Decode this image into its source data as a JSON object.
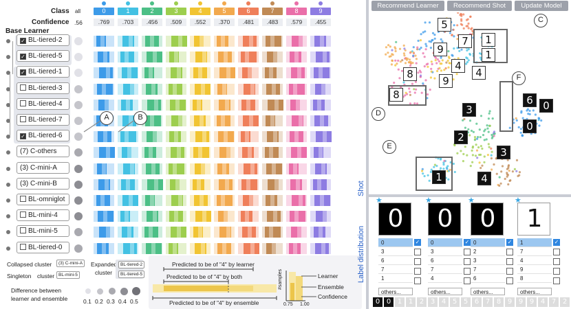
{
  "header": {
    "class_label": "Class",
    "all_label": "all",
    "confidence_label": "Confidence",
    "all_confidence": ".56",
    "base_learner_label": "Base Learner",
    "classes": [
      {
        "id": "0",
        "color": "#3d9be9",
        "confidence": ".769"
      },
      {
        "id": "1",
        "color": "#43c1e3",
        "confidence": ".703"
      },
      {
        "id": "2",
        "color": "#4cbf86",
        "confidence": ".456"
      },
      {
        "id": "3",
        "color": "#9dce4e",
        "confidence": ".509"
      },
      {
        "id": "4",
        "color": "#f1c432",
        "confidence": ".552"
      },
      {
        "id": "5",
        "color": "#f2a94e",
        "confidence": ".370"
      },
      {
        "id": "6",
        "color": "#ef7f5a",
        "confidence": ".481"
      },
      {
        "id": "7",
        "color": "#c08a55",
        "confidence": ".483"
      },
      {
        "id": "8",
        "color": "#ea6fa9",
        "confidence": ".579"
      },
      {
        "id": "9",
        "color": "#8d7ce2",
        "confidence": ".455"
      }
    ]
  },
  "learners": [
    {
      "label": "BL-tiered-2",
      "checked": true,
      "diff": 0.1
    },
    {
      "label": "BL-tiered-5",
      "checked": true,
      "diff": 0.1
    },
    {
      "label": "BL-tiered-1",
      "checked": true,
      "diff": 0.1
    },
    {
      "label": "BL-tiered-3",
      "checked": false,
      "diff": 0.2
    },
    {
      "label": "BL-tiered-4",
      "checked": false,
      "diff": 0.2
    },
    {
      "label": "BL-tiered-7",
      "checked": false,
      "diff": 0.2
    },
    {
      "label": "BL-tiered-6",
      "checked": true,
      "diff": 0.2
    },
    {
      "label": "(7) C-others",
      "checked": null,
      "diff": 0.3
    },
    {
      "label": "(3) C-mini-A",
      "checked": null,
      "diff": 0.4
    },
    {
      "label": "(3) C-mini-B",
      "checked": null,
      "diff": 0.4
    },
    {
      "label": "BL-omniglot",
      "checked": false,
      "diff": 0.4
    },
    {
      "label": "BL-mini-4",
      "checked": false,
      "diff": 0.4
    },
    {
      "label": "BL-mini-5",
      "checked": false,
      "diff": 0.3
    },
    {
      "label": "BL-tiered-0",
      "checked": false,
      "diff": 0.3
    }
  ],
  "callouts": {
    "a": "A",
    "b": "B",
    "c": "C",
    "d": "D",
    "e": "E",
    "f": "F"
  },
  "legend": {
    "collapsed_label": "Collapsed cluster",
    "collapsed_chip": "(3) C-mini-A",
    "singleton_label": "Singleton",
    "cluster_word": "cluster",
    "singleton_chip": "BL-mini-5",
    "expanded_label": "Expanded",
    "expanded_cluster_word": "cluster",
    "expanded_chip_1": "BL-tiered-2",
    "expanded_chip_2": "BL-tiered-5",
    "difference_label_1": "Difference between",
    "difference_label_2": "learner and ensemble",
    "difference_values": [
      "0.1",
      "0.2",
      "0.3",
      "0.4",
      "0.5"
    ],
    "pred_learner": "Predicted to be of \"4\" by learner",
    "pred_both": "Predicted to be of \"4\" by both",
    "pred_ensemble": "Predicted to be of \"4\" by ensemble",
    "samples_axis": "#samples",
    "learner_key": "Learner",
    "ensemble_key": "Ensemble",
    "confidence_key": "Confidence",
    "tick_low": "0.75",
    "tick_high": "1.00"
  },
  "toolbar": {
    "recommend_learner": "Recommend Learner",
    "recommend_shot": "Recommend Shot",
    "update_model": "Update Model"
  },
  "scatter_digits": [
    {
      "d": "5",
      "dark": false
    },
    {
      "d": "9",
      "dark": false
    },
    {
      "d": "7",
      "dark": false
    },
    {
      "d": "1",
      "dark": false
    },
    {
      "d": "1",
      "dark": false
    },
    {
      "d": "4",
      "dark": false
    },
    {
      "d": "4",
      "dark": false
    },
    {
      "d": "9",
      "dark": false
    },
    {
      "d": "8",
      "dark": false
    },
    {
      "d": "8",
      "dark": false
    },
    {
      "d": "6",
      "dark": true
    },
    {
      "d": "0",
      "dark": true
    },
    {
      "d": "0",
      "dark": true
    },
    {
      "d": "3",
      "dark": true
    },
    {
      "d": "2",
      "dark": true
    },
    {
      "d": "3",
      "dark": true
    },
    {
      "d": "1",
      "dark": true
    },
    {
      "d": "4",
      "dark": true
    }
  ],
  "shots_label": "Shot",
  "label_distribution_label": "Label distribution",
  "shots": [
    {
      "glyph": "0",
      "white": false,
      "labels": [
        "0",
        "3",
        "6",
        "7",
        "1"
      ],
      "checked": [
        true,
        false,
        false,
        false,
        false
      ],
      "more": "others..."
    },
    {
      "glyph": "0",
      "white": false,
      "labels": [
        "0",
        "3",
        "6",
        "7",
        "4"
      ],
      "checked": [
        true,
        false,
        false,
        false,
        false
      ],
      "more": "others..."
    },
    {
      "glyph": "0",
      "white": false,
      "labels": [
        "0",
        "2",
        "3",
        "7",
        "6"
      ],
      "checked": [
        true,
        false,
        false,
        false,
        false
      ],
      "more": "others..."
    },
    {
      "glyph": "1",
      "white": true,
      "labels": [
        "1",
        "7",
        "4",
        "9",
        "8"
      ],
      "checked": [
        true,
        false,
        false,
        false,
        false
      ],
      "more": "others..."
    }
  ],
  "strip_glyphs": [
    "0",
    "0",
    "1",
    "1",
    "2",
    "3",
    "4",
    "5",
    "5",
    "6",
    "7",
    "8",
    "9",
    "9",
    "9",
    "4",
    "7",
    "2"
  ]
}
